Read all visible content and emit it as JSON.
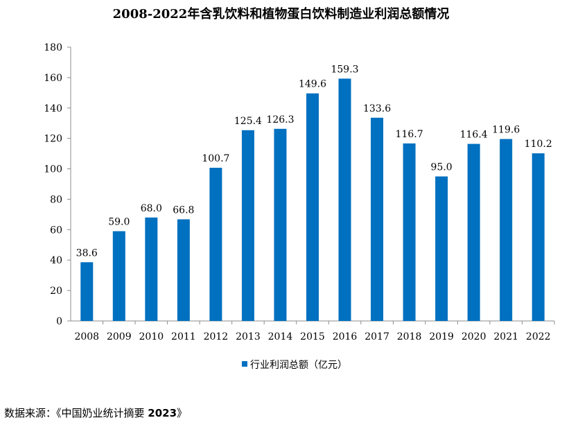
{
  "chart_data": {
    "type": "bar",
    "title": "2008-2022年含乳饮料和植物蛋白饮料制造业利润总额情况",
    "categories": [
      "2008",
      "2009",
      "2010",
      "2011",
      "2012",
      "2013",
      "2014",
      "2015",
      "2016",
      "2017",
      "2018",
      "2019",
      "2020",
      "2021",
      "2022"
    ],
    "series": [
      {
        "name": "行业利润总额（亿元）",
        "values": [
          38.6,
          59.0,
          68.0,
          66.8,
          100.7,
          125.4,
          126.3,
          149.6,
          159.3,
          133.6,
          116.7,
          95.0,
          116.4,
          119.6,
          110.2
        ],
        "labels": [
          "38.6",
          "59.0",
          "68.0",
          "66.8",
          "100.7",
          "125.4",
          "126.3",
          "149.6",
          "159.3",
          "133.6",
          "116.7",
          "95.0",
          "116.4",
          "119.6",
          "110.2"
        ]
      }
    ],
    "ylim": [
      0,
      180
    ],
    "yticks": [
      0,
      20,
      40,
      60,
      80,
      100,
      120,
      140,
      160,
      180
    ],
    "xlabel": "",
    "ylabel": "",
    "legend_position": "bottom",
    "bar_color": "#0070C0"
  },
  "source": {
    "prefix": "数据来源：《中国奶业统计摘要 ",
    "year": "2023",
    "suffix": "》"
  }
}
